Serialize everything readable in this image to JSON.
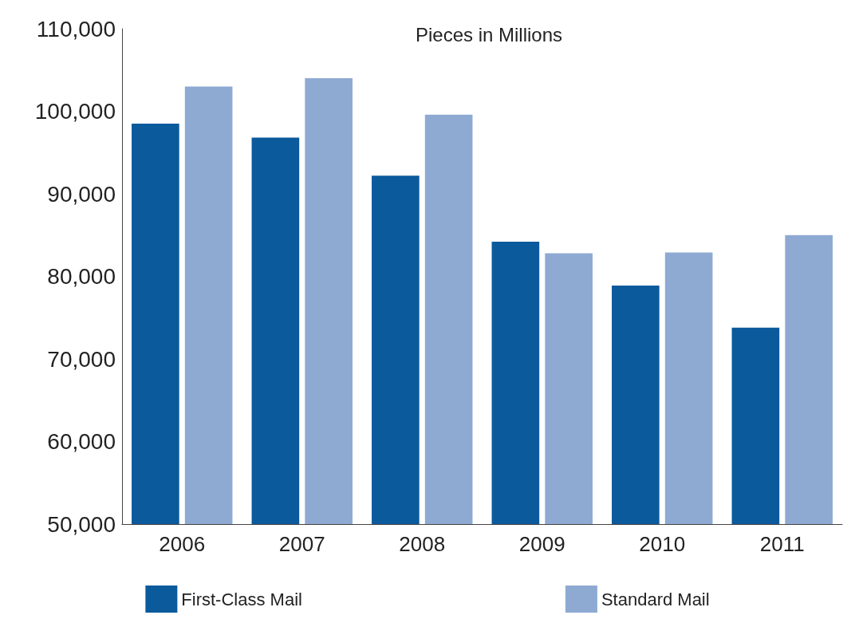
{
  "chart_data": {
    "type": "bar",
    "title": "Pieces in Millions",
    "categories": [
      "2006",
      "2007",
      "2008",
      "2009",
      "2010",
      "2011"
    ],
    "series": [
      {
        "name": "First-Class Mail",
        "color": "#0b5a9c",
        "values": [
          98500,
          96800,
          92200,
          84200,
          78900,
          73800
        ]
      },
      {
        "name": "Standard Mail",
        "color": "#8eaad3",
        "values": [
          103000,
          104000,
          99600,
          82800,
          82900,
          85000
        ]
      }
    ],
    "ylim": [
      50000,
      110000
    ],
    "yticks": [
      {
        "value": 50000,
        "label": "50,000"
      },
      {
        "value": 60000,
        "label": "60,000"
      },
      {
        "value": 70000,
        "label": "70,000"
      },
      {
        "value": 80000,
        "label": "80,000"
      },
      {
        "value": 90000,
        "label": "90,000"
      },
      {
        "value": 100000,
        "label": "100,000"
      },
      {
        "value": 110000,
        "label": "110,000"
      }
    ],
    "grid": false,
    "legend": "bottom"
  }
}
